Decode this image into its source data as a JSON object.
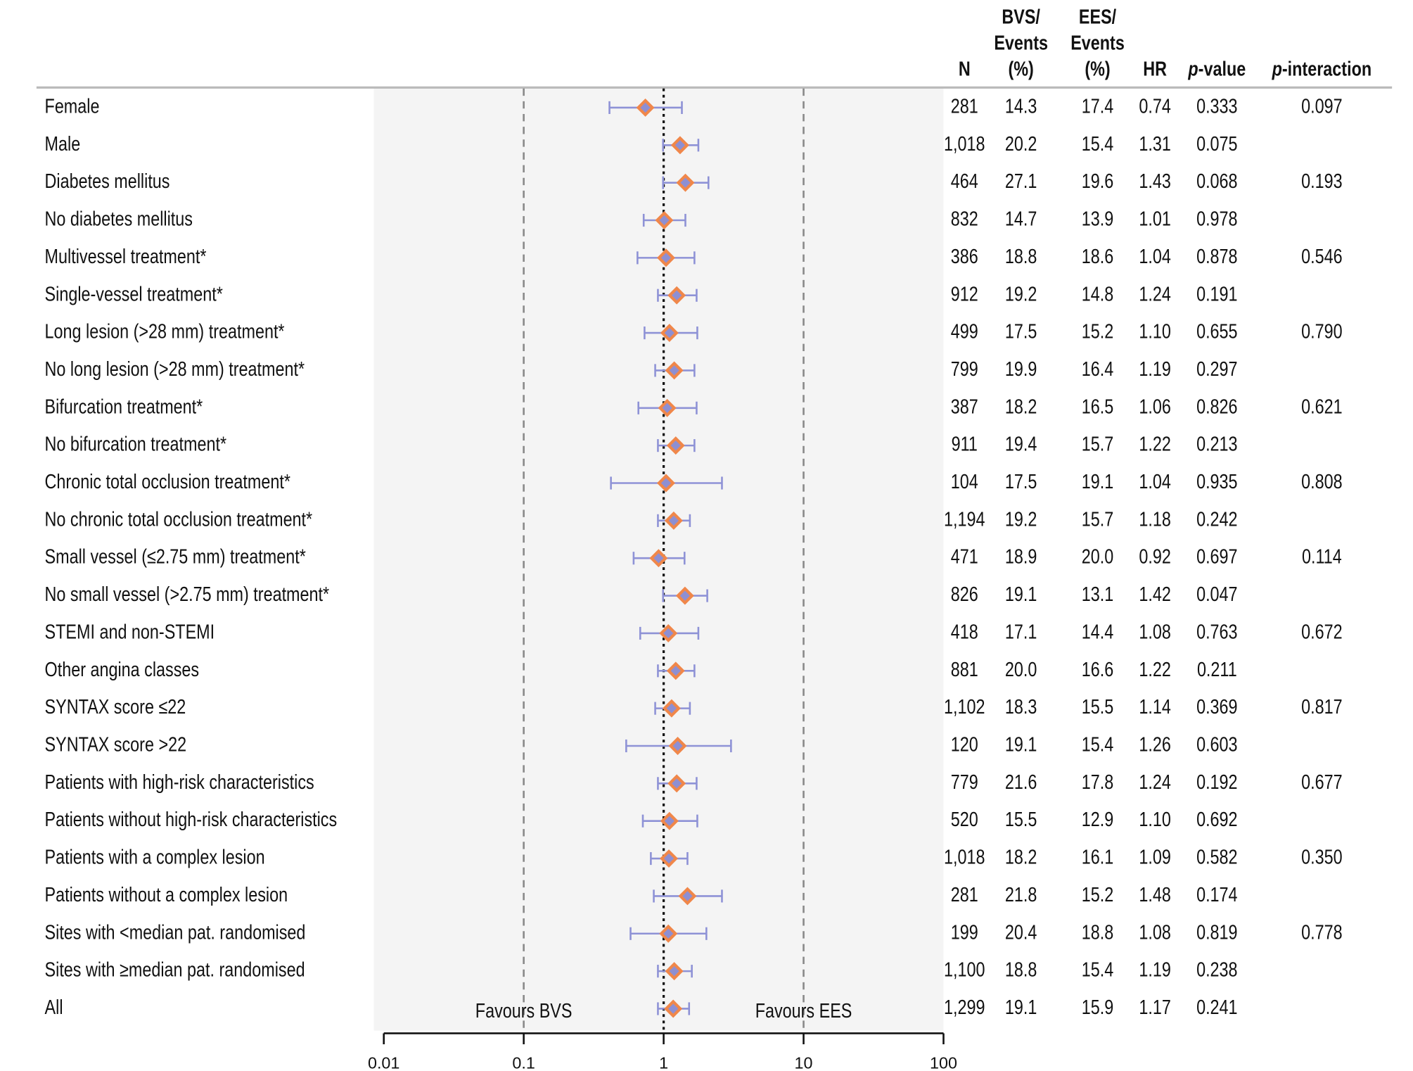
{
  "chart_data": {
    "type": "forest",
    "x_scale": "log",
    "xlim": [
      0.01,
      100
    ],
    "xticks": [
      0.01,
      0.1,
      1,
      10,
      100
    ],
    "annotations": [
      "Favours BVS",
      "Favours EES"
    ],
    "columns": [
      [
        "N"
      ],
      [
        "BVS/",
        "Events",
        "(%)"
      ],
      [
        "EES/",
        "Events",
        "(%)"
      ],
      [
        "HR"
      ],
      [
        "p-value"
      ],
      [
        "p-interaction"
      ]
    ],
    "categories": [
      "Female",
      "Male",
      "Diabetes mellitus",
      "No diabetes mellitus",
      "Multivessel treatment*",
      "Single-vessel treatment*",
      "Long lesion (>28 mm) treatment*",
      "No long lesion (>28 mm) treatment*",
      "Bifurcation treatment*",
      "No bifurcation treatment*",
      "Chronic total occlusion treatment*",
      "No chronic total occlusion treatment*",
      "Small vessel (≤2.75 mm) treatment*",
      "No small vessel (>2.75 mm) treatment*",
      "STEMI and non-STEMI",
      "Other angina classes",
      "SYNTAX score ≤22",
      "SYNTAX score >22",
      "Patients with high-risk characteristics",
      "Patients without high-risk characteristics",
      "Patients with a complex lesion",
      "Patients without a complex lesion",
      "Sites with <median pat. randomised",
      "Sites with ≥median pat. randomised",
      "All"
    ],
    "n": [
      "281",
      "1,018",
      "464",
      "832",
      "386",
      "912",
      "499",
      "799",
      "387",
      "911",
      "104",
      "1,194",
      "471",
      "826",
      "418",
      "881",
      "1,102",
      "120",
      "779",
      "520",
      "1,018",
      "281",
      "199",
      "1,100",
      "1,299"
    ],
    "bvs_events": [
      "14.3",
      "20.2",
      "27.1",
      "14.7",
      "18.8",
      "19.2",
      "17.5",
      "19.9",
      "18.2",
      "19.4",
      "17.5",
      "19.2",
      "18.9",
      "19.1",
      "17.1",
      "20.0",
      "18.3",
      "19.1",
      "21.6",
      "15.5",
      "18.2",
      "21.8",
      "20.4",
      "18.8",
      "19.1"
    ],
    "ees_events": [
      "17.4",
      "15.4",
      "19.6",
      "13.9",
      "18.6",
      "14.8",
      "15.2",
      "16.4",
      "16.5",
      "15.7",
      "19.1",
      "15.7",
      "20.0",
      "13.1",
      "14.4",
      "16.6",
      "15.5",
      "15.4",
      "17.8",
      "12.9",
      "16.1",
      "15.2",
      "18.8",
      "15.4",
      "15.9"
    ],
    "values": [
      0.74,
      1.31,
      1.43,
      1.01,
      1.04,
      1.24,
      1.1,
      1.19,
      1.06,
      1.22,
      1.04,
      1.18,
      0.92,
      1.42,
      1.08,
      1.22,
      1.14,
      1.26,
      1.24,
      1.1,
      1.09,
      1.48,
      1.08,
      1.19,
      1.17
    ],
    "value_labels": [
      "0.74",
      "1.31",
      "1.43",
      "1.01",
      "1.04",
      "1.24",
      "1.10",
      "1.19",
      "1.06",
      "1.22",
      "1.04",
      "1.18",
      "0.92",
      "1.42",
      "1.08",
      "1.22",
      "1.14",
      "1.26",
      "1.24",
      "1.10",
      "1.09",
      "1.48",
      "1.08",
      "1.19",
      "1.17"
    ],
    "ci_low": [
      0.41,
      0.99,
      0.99,
      0.72,
      0.65,
      0.91,
      0.73,
      0.87,
      0.66,
      0.91,
      0.42,
      0.91,
      0.61,
      0.99,
      0.68,
      0.91,
      0.87,
      0.54,
      0.91,
      0.71,
      0.81,
      0.85,
      0.58,
      0.91,
      0.91
    ],
    "ci_high": [
      1.35,
      1.77,
      2.09,
      1.43,
      1.66,
      1.72,
      1.74,
      1.66,
      1.72,
      1.66,
      2.61,
      1.54,
      1.41,
      2.05,
      1.77,
      1.66,
      1.54,
      3.03,
      1.72,
      1.74,
      1.48,
      2.61,
      2.02,
      1.59,
      1.52
    ],
    "p_value": [
      "0.333",
      "0.075",
      "0.068",
      "0.978",
      "0.878",
      "0.191",
      "0.655",
      "0.297",
      "0.826",
      "0.213",
      "0.935",
      "0.242",
      "0.697",
      "0.047",
      "0.763",
      "0.211",
      "0.369",
      "0.603",
      "0.192",
      "0.692",
      "0.582",
      "0.174",
      "0.819",
      "0.238",
      "0.241"
    ],
    "p_interaction": [
      "0.097",
      null,
      "0.193",
      null,
      "0.546",
      null,
      "0.790",
      null,
      "0.621",
      null,
      "0.808",
      null,
      "0.114",
      null,
      "0.672",
      null,
      "0.817",
      null,
      "0.677",
      null,
      "0.350",
      null,
      "0.778",
      null,
      null
    ],
    "marker_color": "#f0874a",
    "marker_inner_color": "#8e8fd2",
    "ci_color": "#8e92d6"
  }
}
